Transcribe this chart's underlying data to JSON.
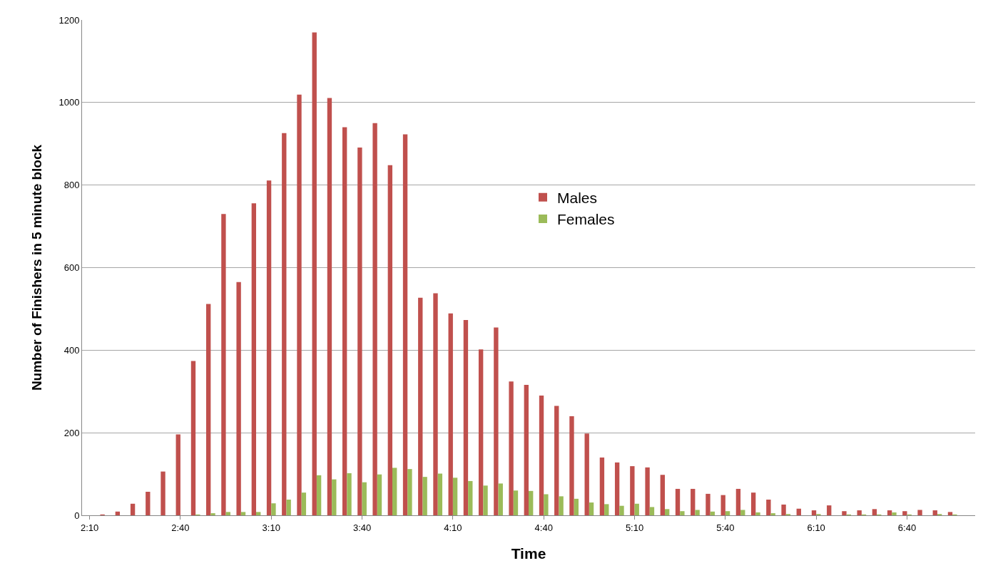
{
  "chart_data": {
    "type": "bar",
    "xlabel": "Time",
    "ylabel": "Number of Finishers in 5 minute block",
    "categories": [
      "2:10",
      null,
      null,
      null,
      null,
      null,
      "2:40",
      null,
      null,
      null,
      null,
      null,
      "3:10",
      null,
      null,
      null,
      null,
      null,
      "3:40",
      null,
      null,
      null,
      null,
      null,
      "4:10",
      null,
      null,
      null,
      null,
      null,
      "4:40",
      null,
      null,
      null,
      null,
      null,
      "5:10",
      null,
      null,
      null,
      null,
      null,
      "5:40",
      null,
      null,
      null,
      null,
      null,
      "6:10",
      null,
      null,
      null,
      null,
      null,
      "6:40",
      null,
      null,
      null,
      null
    ],
    "series": [
      {
        "name": "Males",
        "color": "#c0504d",
        "values": [
          null,
          2,
          9,
          28,
          57,
          106,
          196,
          374,
          512,
          730,
          565,
          756,
          811,
          926,
          1019,
          1170,
          1011,
          940,
          891,
          950,
          848,
          923,
          527,
          538,
          489,
          473,
          402,
          455,
          324,
          316,
          290,
          265,
          240,
          198,
          140,
          128,
          119,
          116,
          98,
          64,
          64,
          52,
          49,
          64,
          55,
          38,
          26,
          16,
          12,
          24,
          10,
          12,
          15,
          12,
          10,
          13,
          12,
          8,
          null
        ]
      },
      {
        "name": "Females",
        "color": "#9bbb59",
        "values": [
          null,
          null,
          null,
          null,
          null,
          null,
          null,
          2,
          5,
          8,
          8,
          8,
          29,
          38,
          55,
          97,
          87,
          102,
          80,
          99,
          115,
          112,
          93,
          101,
          91,
          83,
          72,
          77,
          60,
          59,
          51,
          46,
          40,
          31,
          27,
          23,
          28,
          20,
          15,
          10,
          13,
          9,
          10,
          13,
          7,
          5,
          3,
          null,
          3,
          null,
          2,
          2,
          2,
          7,
          2,
          null,
          3,
          2,
          null
        ]
      }
    ],
    "ylim": [
      0,
      1200
    ],
    "yticks": [
      0,
      200,
      400,
      600,
      800,
      1000,
      1200
    ],
    "grid": "y",
    "legend": "center"
  }
}
